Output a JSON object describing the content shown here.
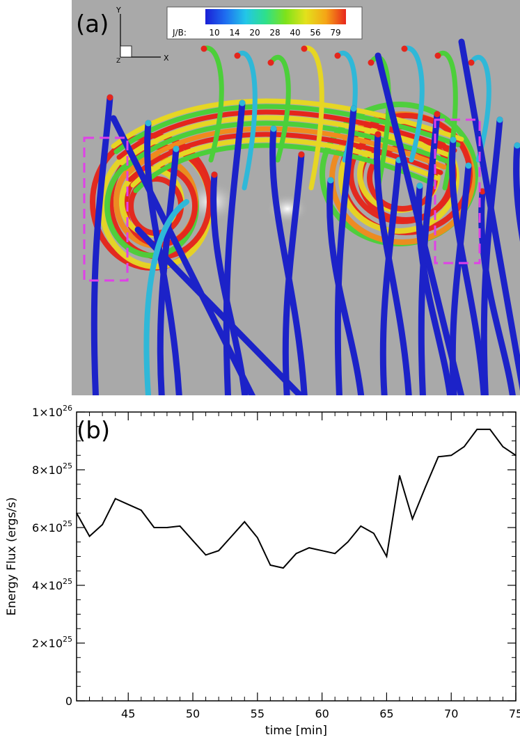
{
  "panel_a": {
    "label": "(a)",
    "colorbar": {
      "title": "J/B:",
      "ticks": [
        "10",
        "14",
        "20",
        "28",
        "40",
        "56",
        "79"
      ],
      "colors": [
        "#1a1fd6",
        "#1e6ef0",
        "#22c6e8",
        "#2ee08a",
        "#7ee21a",
        "#e3e11c",
        "#f5a516",
        "#e8261c"
      ]
    },
    "axes_triad": {
      "y_label": "Y",
      "x_label": "X",
      "z_label": "Z"
    },
    "fieldline_colors": {
      "low": "#1c22c8",
      "cyan": "#2fb8d8",
      "green": "#4ccf3a",
      "yellow": "#e6d624",
      "orange": "#f08a1e",
      "red": "#e4261c"
    },
    "highlight_box_color": "#e040e8",
    "background_color": "#a9a9a9"
  },
  "chart_data": {
    "type": "line",
    "label": "(b)",
    "xlabel": "time [min]",
    "ylabel": "Energy Flux (ergs/s)",
    "xlim": [
      41,
      75
    ],
    "ylim": [
      0,
      1e+26
    ],
    "x_ticks": [
      45,
      50,
      55,
      60,
      65,
      70,
      75
    ],
    "y_ticks": [
      {
        "value": 0,
        "mantissa": "0",
        "exponent": ""
      },
      {
        "value": 2e+25,
        "mantissa": "2×10",
        "exponent": "25"
      },
      {
        "value": 4e+25,
        "mantissa": "4×10",
        "exponent": "25"
      },
      {
        "value": 6e+25,
        "mantissa": "6×10",
        "exponent": "25"
      },
      {
        "value": 8e+25,
        "mantissa": "8×10",
        "exponent": "25"
      },
      {
        "value": 1e+26,
        "mantissa": "1×10",
        "exponent": "26"
      }
    ],
    "series": [
      {
        "x": [
          41,
          42,
          43,
          44,
          45,
          46,
          47,
          48,
          49,
          50,
          51,
          52,
          53,
          54,
          55,
          56,
          57,
          58,
          59,
          60,
          61,
          62,
          63,
          64,
          65,
          66,
          67,
          68,
          69,
          70,
          71,
          72,
          73,
          74,
          75
        ],
        "y": [
          6.5e+25,
          5.7e+25,
          6.1e+25,
          7e+25,
          6.8e+25,
          6.6e+25,
          6e+25,
          6e+25,
          6.05e+25,
          5.55e+25,
          5.05e+25,
          5.2e+25,
          5.7e+25,
          6.2e+25,
          5.65e+25,
          4.7e+25,
          4.6e+25,
          5.1e+25,
          5.3e+25,
          5.2e+25,
          5.1e+25,
          5.5e+25,
          6.05e+25,
          5.8e+25,
          5e+25,
          7.8e+25,
          6.3e+25,
          7.4e+25,
          8.45e+25,
          8.5e+25,
          8.8e+25,
          9.4e+25,
          9.4e+25,
          8.8e+25,
          8.5e+25
        ],
        "color": "#000000"
      }
    ]
  }
}
